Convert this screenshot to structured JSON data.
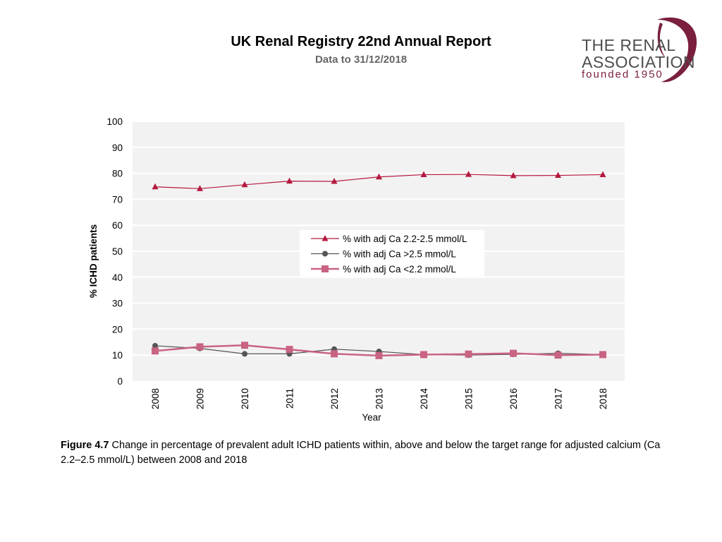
{
  "header": {
    "title": "UK Renal Registry 22nd Annual Report",
    "subtitle": "Data to 31/12/2018"
  },
  "logo": {
    "line1": "THE RENAL",
    "line2": "ASSOCIATION",
    "line3": "founded 1950",
    "color_text": "#4d4d4d",
    "color_accent": "#7a1f3d"
  },
  "chart_data": {
    "type": "line",
    "title": "",
    "xlabel": "Year",
    "ylabel": "% ICHD patients",
    "ylim": [
      0,
      100
    ],
    "yticks": [
      "0",
      "10",
      "20",
      "30",
      "40",
      "50",
      "60",
      "70",
      "80",
      "90",
      "100"
    ],
    "categories": [
      "2008",
      "2009",
      "2010",
      "2011",
      "2012",
      "2013",
      "2014",
      "2015",
      "2016",
      "2017",
      "2018"
    ],
    "legend_position": "middle",
    "grid": true,
    "series": [
      {
        "name": "% with adj Ca 2.2-2.5 mmol/L",
        "marker": "triangle",
        "color": "#b5193f",
        "values": [
          74.8,
          74.1,
          75.6,
          77.0,
          76.9,
          78.6,
          79.5,
          79.6,
          79.1,
          79.2,
          79.5
        ]
      },
      {
        "name": "% with adj Ca >2.5 mmol/L",
        "marker": "circle",
        "color": "#555555",
        "values": [
          13.6,
          12.6,
          10.5,
          10.5,
          12.3,
          11.4,
          10.2,
          10.0,
          10.3,
          10.7,
          10.2
        ]
      },
      {
        "name": "% with adj Ca <2.2 mmol/L",
        "marker": "square",
        "color": "#c96382",
        "values": [
          11.6,
          13.2,
          13.8,
          12.2,
          10.5,
          9.8,
          10.2,
          10.4,
          10.7,
          10.0,
          10.2
        ]
      }
    ]
  },
  "caption": {
    "label": "Figure 4.7",
    "text": " Change in percentage of prevalent adult ICHD patients within, above and below the target range for adjusted calcium (Ca 2.2–2.5 mmol/L) between 2008 and 2018"
  }
}
